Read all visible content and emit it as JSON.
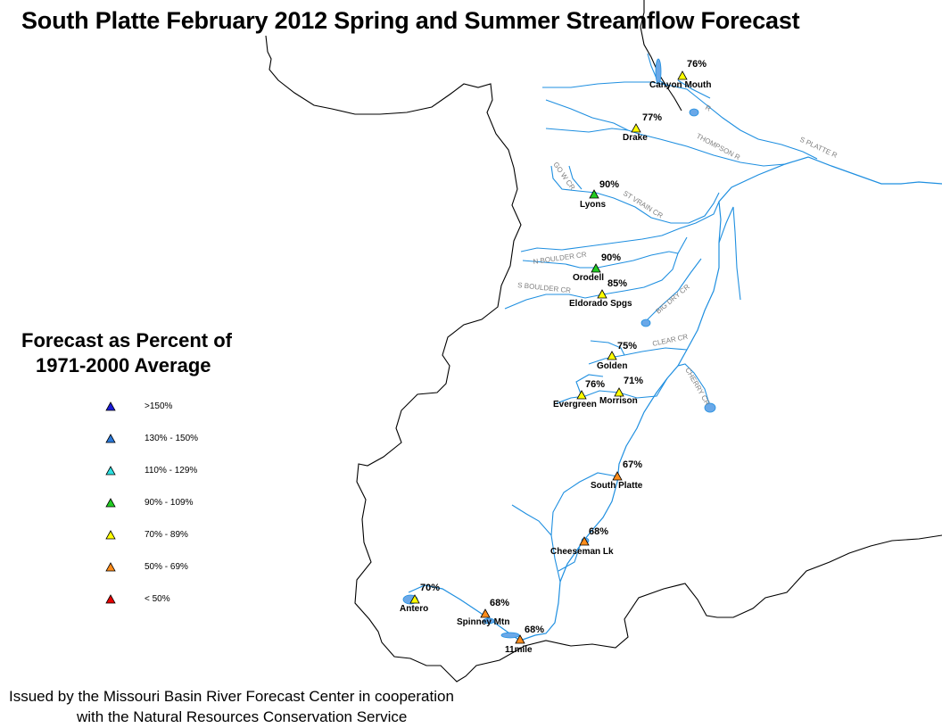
{
  "title": "South Platte February 2012 Spring and Summer Streamflow Forecast",
  "legend": {
    "title_line1": "Forecast as Percent of",
    "title_line2": "1971-2000 Average",
    "items": [
      {
        "label": ">150%",
        "color": "#1a1ad6"
      },
      {
        "label": "130% - 150%",
        "color": "#2a78d8"
      },
      {
        "label": "110% - 129%",
        "color": "#2ee0e0"
      },
      {
        "label": "90% - 109%",
        "color": "#22cc22"
      },
      {
        "label": "70% - 89%",
        "color": "#ffff00"
      },
      {
        "label": "50% - 69%",
        "color": "#ff8c1a"
      },
      {
        "label": "< 50%",
        "color": "#e60000"
      }
    ]
  },
  "sites": [
    {
      "name": "Canyon Mouth",
      "percent": "76%",
      "color": "#ffff00"
    },
    {
      "name": "Drake",
      "percent": "77%",
      "color": "#ffff00"
    },
    {
      "name": "Lyons",
      "percent": "90%",
      "color": "#22cc22"
    },
    {
      "name": "Orodell",
      "percent": "90%",
      "color": "#22cc22"
    },
    {
      "name": "Eldorado Spgs",
      "percent": "85%",
      "color": "#ffff00"
    },
    {
      "name": "Golden",
      "percent": "75%",
      "color": "#ffff00"
    },
    {
      "name": "Evergreen",
      "percent": "76%",
      "color": "#ffff00"
    },
    {
      "name": "Morrison",
      "percent": "71%",
      "color": "#ffff00"
    },
    {
      "name": "South Platte",
      "percent": "67%",
      "color": "#ff8c1a"
    },
    {
      "name": "Cheeseman Lk",
      "percent": "68%",
      "color": "#ff8c1a"
    },
    {
      "name": "Antero",
      "percent": "70%",
      "color": "#ffff00"
    },
    {
      "name": "Spinney Mtn",
      "percent": "68%",
      "color": "#ff8c1a"
    },
    {
      "name": "11mile",
      "percent": "68%",
      "color": "#ff8c1a"
    }
  ],
  "river_labels": [
    "S PLATTE R",
    "THOMPSON R",
    "R",
    "GO W CR",
    "ST VRAIN CR",
    "N BOULDER CR",
    "S BOULDER CR",
    "BIG DRY CR",
    "CLEAR CR",
    "CHERRY CR"
  ],
  "footer": {
    "line1": "Issued by the Missouri Basin River Forecast Center in cooperation",
    "line2": "with the Natural Resources Conservation Service"
  },
  "colors": {
    "river": "#1f8fe0",
    "lake": "#6aa8e8",
    "boundary": "#000000"
  }
}
